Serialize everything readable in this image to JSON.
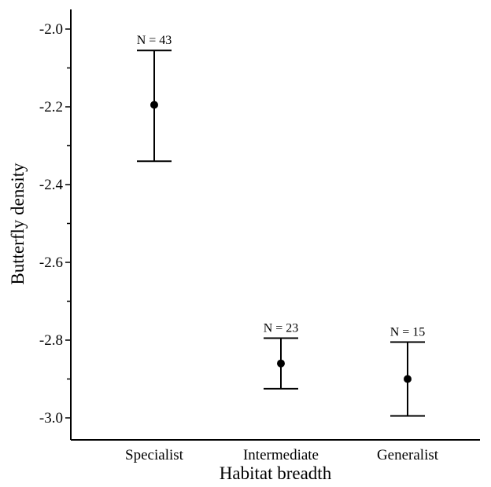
{
  "chart_data": {
    "type": "errorbar",
    "xlabel": "Habitat breadth",
    "ylabel": "Butterfly density",
    "ylim": [
      -3.05,
      -1.95
    ],
    "yticks_major": [
      -2.0,
      -2.2,
      -2.4,
      -2.6,
      -2.8,
      -3.0
    ],
    "ytick_labels": [
      "-2.0",
      "-2.2",
      "-2.4",
      "-2.6",
      "-2.8",
      "-3.0"
    ],
    "yticks_minor": [
      -2.1,
      -2.3,
      -2.5,
      -2.7,
      -2.9
    ],
    "categories": [
      "Specialist",
      "Intermediate",
      "Generalist"
    ],
    "points": [
      {
        "category": "Specialist",
        "mean": -2.195,
        "upper": -2.055,
        "lower": -2.34,
        "n_label": "N = 43"
      },
      {
        "category": "Intermediate",
        "mean": -2.86,
        "upper": -2.795,
        "lower": -2.925,
        "n_label": "N = 23"
      },
      {
        "category": "Generalist",
        "mean": -2.9,
        "upper": -2.805,
        "lower": -2.995,
        "n_label": "N = 15"
      }
    ],
    "grid": false,
    "colors": {
      "ink": "#000000",
      "background": "#ffffff"
    }
  }
}
